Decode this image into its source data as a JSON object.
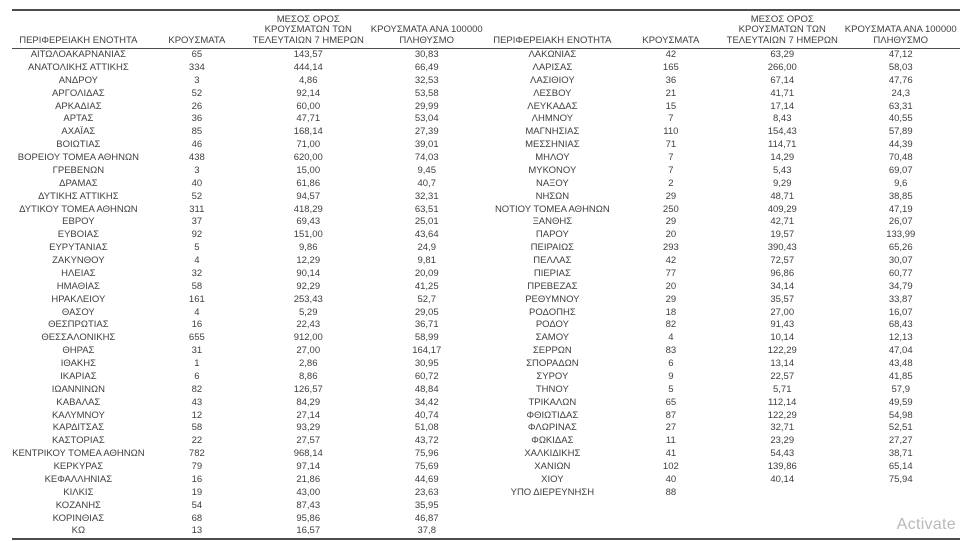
{
  "table_headers": {
    "region": "ΠΕΡΙΦΕΡΕΙΑΚΗ ΕΝΟΤΗΤΑ",
    "cases": "ΚΡΟΥΣΜΑΤΑ",
    "avg7_line1": "ΜΕΣΟΣ ΟΡΟΣ",
    "avg7_line2": "ΚΡΟΥΣΜΑΤΩΝ ΤΩΝ",
    "avg7_line3": "ΤΕΛΕΥΤΑΙΩΝ 7 ΗΜΕΡΩΝ",
    "per100k_line1": "ΚΡΟΥΣΜΑΤΑ ΑΝΑ 100000",
    "per100k_line2": "ΠΛΗΘΥΣΜΟ"
  },
  "left_table": {
    "rows": [
      [
        "ΑΙΤΩΛΟΑΚΑΡΝΑΝΙΑΣ",
        "65",
        "143,57",
        "30,83"
      ],
      [
        "ΑΝΑΤΟΛΙΚΗΣ ΑΤΤΙΚΗΣ",
        "334",
        "444,14",
        "66,49"
      ],
      [
        "ΑΝΔΡΟΥ",
        "3",
        "4,86",
        "32,53"
      ],
      [
        "ΑΡΓΟΛΙΔΑΣ",
        "52",
        "92,14",
        "53,58"
      ],
      [
        "ΑΡΚΑΔΙΑΣ",
        "26",
        "60,00",
        "29,99"
      ],
      [
        "ΑΡΤΑΣ",
        "36",
        "47,71",
        "53,04"
      ],
      [
        "ΑΧΑΪΑΣ",
        "85",
        "168,14",
        "27,39"
      ],
      [
        "ΒΟΙΩΤΙΑΣ",
        "46",
        "71,00",
        "39,01"
      ],
      [
        "ΒΟΡΕΙΟΥ ΤΟΜΕΑ ΑΘΗΝΩΝ",
        "438",
        "620,00",
        "74,03"
      ],
      [
        "ΓΡΕΒΕΝΩΝ",
        "3",
        "15,00",
        "9,45"
      ],
      [
        "ΔΡΑΜΑΣ",
        "40",
        "61,86",
        "40,7"
      ],
      [
        "ΔΥΤΙΚΗΣ ΑΤΤΙΚΗΣ",
        "52",
        "94,57",
        "32,31"
      ],
      [
        "ΔΥΤΙΚΟΥ ΤΟΜΕΑ ΑΘΗΝΩΝ",
        "311",
        "418,29",
        "63,51"
      ],
      [
        "ΕΒΡΟΥ",
        "37",
        "69,43",
        "25,01"
      ],
      [
        "ΕΥΒΟΙΑΣ",
        "92",
        "151,00",
        "43,64"
      ],
      [
        "ΕΥΡΥΤΑΝΙΑΣ",
        "5",
        "9,86",
        "24,9"
      ],
      [
        "ΖΑΚΥΝΘΟΥ",
        "4",
        "12,29",
        "9,81"
      ],
      [
        "ΗΛΕΙΑΣ",
        "32",
        "90,14",
        "20,09"
      ],
      [
        "ΗΜΑΘΙΑΣ",
        "58",
        "92,29",
        "41,25"
      ],
      [
        "ΗΡΑΚΛΕΙΟΥ",
        "161",
        "253,43",
        "52,7"
      ],
      [
        "ΘΑΣΟΥ",
        "4",
        "5,29",
        "29,05"
      ],
      [
        "ΘΕΣΠΡΩΤΙΑΣ",
        "16",
        "22,43",
        "36,71"
      ],
      [
        "ΘΕΣΣΑΛΟΝΙΚΗΣ",
        "655",
        "912,00",
        "58,99"
      ],
      [
        "ΘΗΡΑΣ",
        "31",
        "27,00",
        "164,17"
      ],
      [
        "ΙΘΑΚΗΣ",
        "1",
        "2,86",
        "30,95"
      ],
      [
        "ΙΚΑΡΙΑΣ",
        "6",
        "8,86",
        "60,72"
      ],
      [
        "ΙΩΑΝΝΙΝΩΝ",
        "82",
        "126,57",
        "48,84"
      ],
      [
        "ΚΑΒΑΛΑΣ",
        "43",
        "84,29",
        "34,42"
      ],
      [
        "ΚΑΛΥΜΝΟΥ",
        "12",
        "27,14",
        "40,74"
      ],
      [
        "ΚΑΡΔΙΤΣΑΣ",
        "58",
        "93,29",
        "51,08"
      ],
      [
        "ΚΑΣΤΟΡΙΑΣ",
        "22",
        "27,57",
        "43,72"
      ],
      [
        "ΚΕΝΤΡΙΚΟΥ ΤΟΜΕΑ ΑΘΗΝΩΝ",
        "782",
        "968,14",
        "75,96"
      ],
      [
        "ΚΕΡΚΥΡΑΣ",
        "79",
        "97,14",
        "75,69"
      ],
      [
        "ΚΕΦΑΛΛΗΝΙΑΣ",
        "16",
        "21,86",
        "44,69"
      ],
      [
        "ΚΙΛΚΙΣ",
        "19",
        "43,00",
        "23,63"
      ],
      [
        "ΚΟΖΑΝΗΣ",
        "54",
        "87,43",
        "35,95"
      ],
      [
        "ΚΟΡΙΝΘΙΑΣ",
        "68",
        "95,86",
        "46,87"
      ],
      [
        "ΚΩ",
        "13",
        "16,57",
        "37,8"
      ]
    ]
  },
  "right_table": {
    "rows": [
      [
        "ΛΑΚΩΝΙΑΣ",
        "42",
        "63,29",
        "47,12"
      ],
      [
        "ΛΑΡΙΣΑΣ",
        "165",
        "266,00",
        "58,03"
      ],
      [
        "ΛΑΣΙΘΙΟΥ",
        "36",
        "67,14",
        "47,76"
      ],
      [
        "ΛΕΣΒΟΥ",
        "21",
        "41,71",
        "24,3"
      ],
      [
        "ΛΕΥΚΑΔΑΣ",
        "15",
        "17,14",
        "63,31"
      ],
      [
        "ΛΗΜΝΟΥ",
        "7",
        "8,43",
        "40,55"
      ],
      [
        "ΜΑΓΝΗΣΙΑΣ",
        "110",
        "154,43",
        "57,89"
      ],
      [
        "ΜΕΣΣΗΝΙΑΣ",
        "71",
        "114,71",
        "44,39"
      ],
      [
        "ΜΗΛΟΥ",
        "7",
        "14,29",
        "70,48"
      ],
      [
        "ΜΥΚΟΝΟΥ",
        "7",
        "5,43",
        "69,07"
      ],
      [
        "ΝΑΞΟΥ",
        "2",
        "9,29",
        "9,6"
      ],
      [
        "ΝΗΣΩΝ",
        "29",
        "48,71",
        "38,85"
      ],
      [
        "ΝΟΤΙΟΥ ΤΟΜΕΑ ΑΘΗΝΩΝ",
        "250",
        "409,29",
        "47,19"
      ],
      [
        "ΞΑΝΘΗΣ",
        "29",
        "42,71",
        "26,07"
      ],
      [
        "ΠΑΡΟΥ",
        "20",
        "19,57",
        "133,99"
      ],
      [
        "ΠΕΙΡΑΙΩΣ",
        "293",
        "390,43",
        "65,26"
      ],
      [
        "ΠΕΛΛΑΣ",
        "42",
        "72,57",
        "30,07"
      ],
      [
        "ΠΙΕΡΙΑΣ",
        "77",
        "96,86",
        "60,77"
      ],
      [
        "ΠΡΕΒΕΖΑΣ",
        "20",
        "34,14",
        "34,79"
      ],
      [
        "ΡΕΘΥΜΝΟΥ",
        "29",
        "35,57",
        "33,87"
      ],
      [
        "ΡΟΔΟΠΗΣ",
        "18",
        "27,00",
        "16,07"
      ],
      [
        "ΡΟΔΟΥ",
        "82",
        "91,43",
        "68,43"
      ],
      [
        "ΣΑΜΟΥ",
        "4",
        "10,14",
        "12,13"
      ],
      [
        "ΣΕΡΡΩΝ",
        "83",
        "122,29",
        "47,04"
      ],
      [
        "ΣΠΟΡΑΔΩΝ",
        "6",
        "13,14",
        "43,48"
      ],
      [
        "ΣΥΡΟΥ",
        "9",
        "22,57",
        "41,85"
      ],
      [
        "ΤΗΝΟΥ",
        "5",
        "5,71",
        "57,9"
      ],
      [
        "ΤΡΙΚΑΛΩΝ",
        "65",
        "112,14",
        "49,59"
      ],
      [
        "ΦΘΙΩΤΙΔΑΣ",
        "87",
        "122,29",
        "54,98"
      ],
      [
        "ΦΛΩΡΙΝΑΣ",
        "27",
        "32,71",
        "52,51"
      ],
      [
        "ΦΩΚΙΔΑΣ",
        "11",
        "23,29",
        "27,27"
      ],
      [
        "ΧΑΛΚΙΔΙΚΗΣ",
        "41",
        "54,43",
        "38,71"
      ],
      [
        "ΧΑΝΙΩΝ",
        "102",
        "139,86",
        "65,14"
      ],
      [
        "ΧΙΟΥ",
        "40",
        "40,14",
        "75,94"
      ],
      [
        "ΥΠΟ ΔΙΕΡΕΥΝΗΣΗ",
        "88",
        "",
        ""
      ]
    ]
  },
  "watermark": {
    "text": "Activate"
  },
  "colors": {
    "text": "#3f3f3f",
    "line": "#4d4d4d",
    "watermark": "#b9b9b9"
  }
}
